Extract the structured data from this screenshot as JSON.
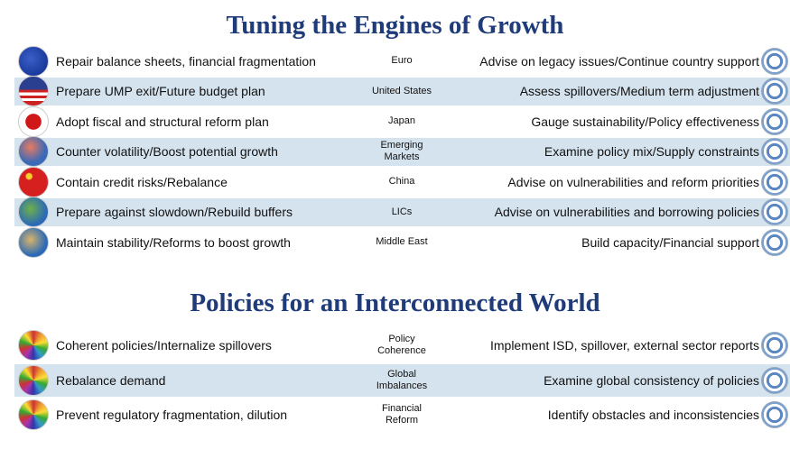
{
  "sections": [
    {
      "title": "Tuning the Engines of Growth",
      "rows": [
        {
          "left": "Repair balance sheets, financial fragmentation",
          "mid": [
            "Euro"
          ],
          "right": "Advise on legacy issues/Continue country support"
        },
        {
          "left": "Prepare UMP exit/Future budget plan",
          "mid": [
            "United States"
          ],
          "right": "Assess spillovers/Medium term adjustment"
        },
        {
          "left": "Adopt fiscal and structural reform plan",
          "mid": [
            "Japan"
          ],
          "right": "Gauge sustainability/Policy effectiveness"
        },
        {
          "left": "Counter volatility/Boost potential growth",
          "mid": [
            "Emerging",
            "Markets"
          ],
          "right": "Examine policy mix/Supply constraints"
        },
        {
          "left": "Contain credit risks/Rebalance",
          "mid": [
            "China"
          ],
          "right": "Advise on vulnerabilities and reform priorities"
        },
        {
          "left": "Prepare against slowdown/Rebuild buffers",
          "mid": [
            "LICs"
          ],
          "right": "Advise on vulnerabilities and borrowing policies"
        },
        {
          "left": "Maintain stability/Reforms to boost growth",
          "mid": [
            "Middle East"
          ],
          "right": "Build capacity/Financial support"
        }
      ]
    },
    {
      "title": "Policies for an Interconnected World",
      "rows": [
        {
          "left": "Coherent policies/Internalize spillovers",
          "mid": [
            "Policy",
            "Coherence"
          ],
          "right": "Implement ISD, spillover, external sector reports"
        },
        {
          "left": "Rebalance demand",
          "mid": [
            "Global",
            "Imbalances"
          ],
          "right": "Examine global consistency of policies"
        },
        {
          "left": "Prevent regulatory fragmentation, dilution",
          "mid": [
            "Financial",
            "Reform"
          ],
          "right": "Identify obstacles and inconsistencies"
        }
      ]
    }
  ]
}
